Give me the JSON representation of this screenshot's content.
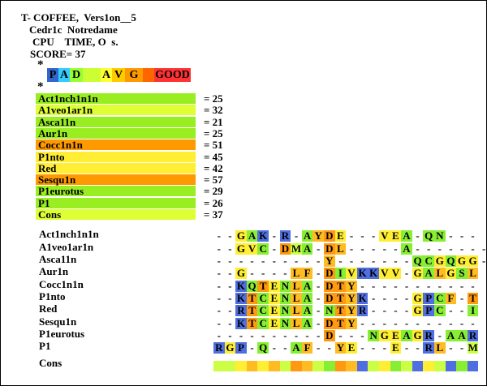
{
  "header": {
    "line1": "T- COFFEE,  Vers1on__5",
    "line2": "Cedr1c  Notredame",
    "line3": "CPU    TIME, O  s.",
    "line4": "SCORE= 37",
    "asterisk1": "*",
    "asterisk2": "*"
  },
  "legend": [
    {
      "text": "P",
      "color": "#3366cc"
    },
    {
      "text": "A",
      "color": "#33ccff"
    },
    {
      "text": "D",
      "color": "#99ff33"
    },
    {
      "text": "",
      "color": "#ccff33"
    },
    {
      "text": "A",
      "color": "#ffff33"
    },
    {
      "text": "V",
      "color": "#ffcc00"
    },
    {
      "text": "G",
      "color": "#ff9900"
    },
    {
      "text": "",
      "color": "#ff6600"
    },
    {
      "text": "GOOD",
      "color": "#ff3333"
    }
  ],
  "scores": [
    {
      "name": "Act1nch1n1n",
      "value": "= 25",
      "color": "#99ee22"
    },
    {
      "name": "A1veo1ar1n",
      "value": "= 32",
      "color": "#ddff33"
    },
    {
      "name": "Asca11n",
      "value": "= 21",
      "color": "#99ee22"
    },
    {
      "name": "Aur1n",
      "value": "= 25",
      "color": "#99ee22"
    },
    {
      "name": "Cocc1n1n",
      "value": "= 51",
      "color": "#ff9900"
    },
    {
      "name": "P1nto",
      "value": "= 45",
      "color": "#ffee33"
    },
    {
      "name": "Red",
      "value": "= 42",
      "color": "#ffee33"
    },
    {
      "name": "Sesqu1n",
      "value": "= 57",
      "color": "#ff9900"
    },
    {
      "name": "P1eurotus",
      "value": "= 29",
      "color": "#99ee22"
    },
    {
      "name": "P1",
      "value": "= 26",
      "color": "#99ee22"
    },
    {
      "name": "Cons",
      "value": "= 37",
      "color": "#ddff33"
    }
  ],
  "alignment": [
    {
      "name": "Act1nch1n1n",
      "seq": "--GAK-R-AYDE---VEA-QN---"
    },
    {
      "name": "A1veo1ar1n",
      "seq": "--GVC-DMA-DL-----A-------"
    },
    {
      "name": "Asca11n",
      "seq": "----------Y-------QCGQGG--"
    },
    {
      "name": "Aur1n",
      "seq": "--G----LF-DIVKKVV-GALGSL"
    },
    {
      "name": "Cocc1n1n",
      "seq": "--KQTENLA-DTY-----------"
    },
    {
      "name": "P1nto",
      "seq": "--KTCENLA-DTYK----GPCF-T"
    },
    {
      "name": "Red",
      "seq": "--RTCENLA-NTYR----GPC--I"
    },
    {
      "name": "Sesqu1n",
      "seq": "--KTCENLA-DTY-----------"
    },
    {
      "name": "P1eurotus",
      "seq": "----------D---NGEAGR-AAR"
    },
    {
      "name": "P1",
      "seq": "RGP-Q--AF--YE---E--RL--M"
    },
    {
      "name": "Cons",
      "seq": ""
    }
  ],
  "colors": {
    "blue": "#4f6fe0",
    "cyan": "#44ccee",
    "green": "#88ee33",
    "lime": "#ccff44",
    "yellow": "#ffee33",
    "amber": "#ffbb22",
    "orange": "#ff9911",
    "red": "#ff4411"
  }
}
